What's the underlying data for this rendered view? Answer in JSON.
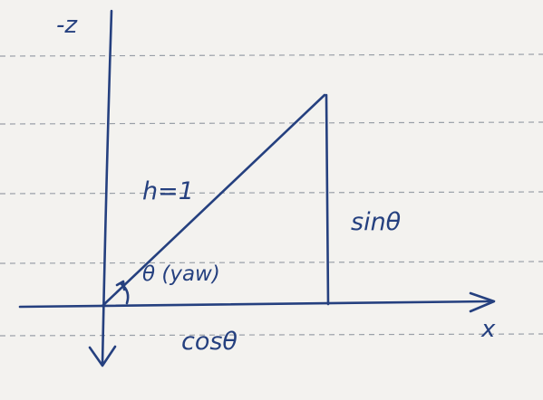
{
  "diagram": {
    "axis_labels": {
      "neg_z": "-z",
      "x": "x"
    },
    "hypotenuse_label": "h=1",
    "opposite_label": "sinθ",
    "adjacent_label": "cosθ",
    "angle_label": "θ (yaw)",
    "colors": {
      "ink": "#25407f",
      "paper": "#f3f2ef",
      "rule_lines": "#9aa0a8"
    }
  }
}
